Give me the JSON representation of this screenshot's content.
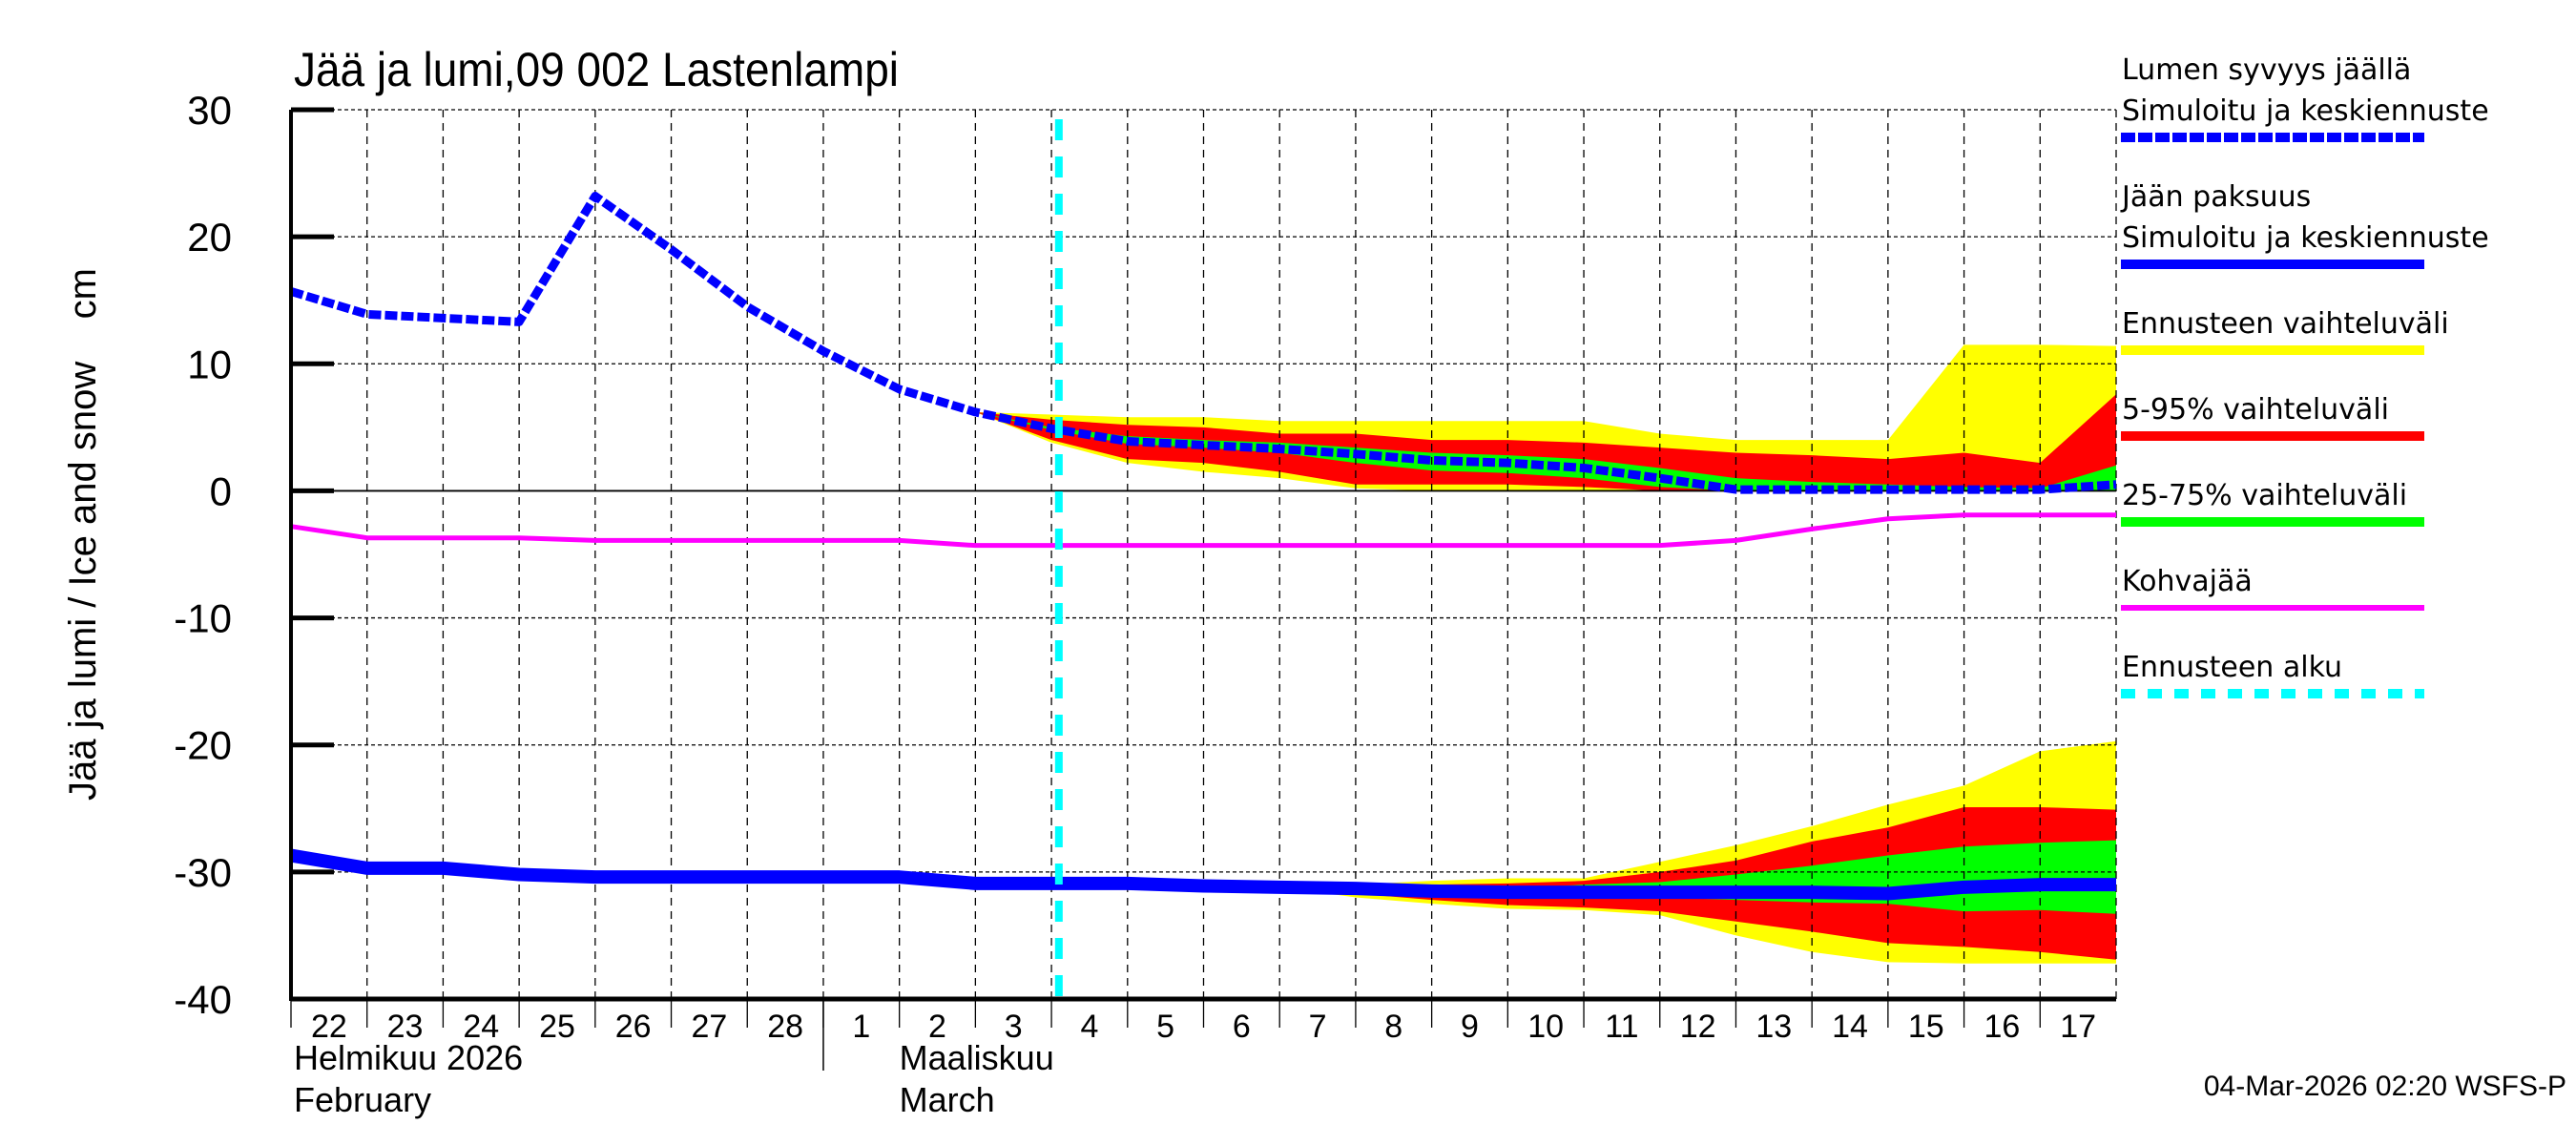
{
  "chart_data": {
    "type": "area",
    "title": "Jää ja lumi,09 002 Lastenlampi",
    "ylabel": "Jää ja lumi / Ice and snow    cm",
    "ylim": [
      -40,
      30
    ],
    "yticks": [
      "30",
      "20",
      "10",
      "0",
      "-10",
      "-20",
      "-30",
      "-40"
    ],
    "xlim": [
      "2026-02-22",
      "2026-03-18"
    ],
    "xtick_labels": [
      "22",
      "23",
      "24",
      "25",
      "26",
      "27",
      "28",
      "1",
      "2",
      "3",
      "4",
      "5",
      "6",
      "7",
      "8",
      "9",
      "10",
      "11",
      "12",
      "13",
      "14",
      "15",
      "16",
      "17"
    ],
    "month_labels": [
      {
        "fi": "Helmikuu  2026",
        "en": "February"
      },
      {
        "fi": "Maaliskuu",
        "en": "March"
      }
    ],
    "grid": true,
    "legend_placement": "right",
    "forecast_start": "2026-03-04T02:20",
    "series": [
      {
        "name": "Lumen syvyys jäällä Simuloitu ja keskiennuste",
        "style": "dashed",
        "color": "#0000ff",
        "x": [
          "2026-02-22",
          "2026-02-23",
          "2026-02-24",
          "2026-02-25",
          "2026-02-26",
          "2026-02-27",
          "2026-02-28",
          "2026-03-01",
          "2026-03-02",
          "2026-03-03",
          "2026-03-04",
          "2026-03-05",
          "2026-03-06",
          "2026-03-07",
          "2026-03-08",
          "2026-03-09",
          "2026-03-10",
          "2026-03-11",
          "2026-03-12",
          "2026-03-13",
          "2026-03-14",
          "2026-03-15",
          "2026-03-16",
          "2026-03-17",
          "2026-03-18"
        ],
        "y": [
          15.7,
          13.9,
          13.6,
          13.3,
          23.2,
          19.0,
          14.5,
          11.0,
          8.0,
          6.2,
          4.9,
          3.9,
          3.6,
          3.3,
          2.9,
          2.4,
          2.2,
          1.8,
          1.0,
          0.1,
          0.1,
          0.1,
          0.1,
          0.1,
          0.5
        ]
      },
      {
        "name": "Jään paksuus Simuloitu ja keskiennuste",
        "style": "solid",
        "color": "#0000ff",
        "x": [
          "2026-02-22",
          "2026-02-23",
          "2026-02-24",
          "2026-02-25",
          "2026-02-26",
          "2026-02-27",
          "2026-02-28",
          "2026-03-01",
          "2026-03-02",
          "2026-03-03",
          "2026-03-04",
          "2026-03-05",
          "2026-03-06",
          "2026-03-07",
          "2026-03-08",
          "2026-03-09",
          "2026-03-10",
          "2026-03-11",
          "2026-03-12",
          "2026-03-13",
          "2026-03-14",
          "2026-03-15",
          "2026-03-16",
          "2026-03-17",
          "2026-03-18"
        ],
        "y": [
          -28.7,
          -29.7,
          -29.7,
          -30.2,
          -30.4,
          -30.4,
          -30.4,
          -30.4,
          -30.4,
          -30.9,
          -30.9,
          -30.9,
          -31.1,
          -31.2,
          -31.3,
          -31.5,
          -31.6,
          -31.6,
          -31.6,
          -31.6,
          -31.6,
          -31.7,
          -31.2,
          -31.0,
          -31.0
        ]
      },
      {
        "name": "Kohvajää",
        "style": "solid",
        "color": "#ff00ff",
        "x": [
          "2026-02-22",
          "2026-02-23",
          "2026-02-24",
          "2026-02-25",
          "2026-02-26",
          "2026-02-27",
          "2026-02-28",
          "2026-03-01",
          "2026-03-02",
          "2026-03-03",
          "2026-03-04",
          "2026-03-05",
          "2026-03-06",
          "2026-03-07",
          "2026-03-08",
          "2026-03-09",
          "2026-03-10",
          "2026-03-11",
          "2026-03-12",
          "2026-03-13",
          "2026-03-14",
          "2026-03-15",
          "2026-03-16",
          "2026-03-17",
          "2026-03-18"
        ],
        "y": [
          -2.8,
          -3.7,
          -3.7,
          -3.7,
          -3.9,
          -3.9,
          -3.9,
          -3.9,
          -3.9,
          -4.3,
          -4.3,
          -4.3,
          -4.3,
          -4.3,
          -4.3,
          -4.3,
          -4.3,
          -4.3,
          -4.3,
          -3.9,
          -3.0,
          -2.2,
          -1.9,
          -1.9,
          -1.9
        ]
      }
    ],
    "bands": [
      {
        "name": "Ennusteen vaihteluväli",
        "color": "#ffff00",
        "target": "snow",
        "x": [
          "2026-03-03",
          "2026-03-04",
          "2026-03-05",
          "2026-03-06",
          "2026-03-07",
          "2026-03-08",
          "2026-03-09",
          "2026-03-10",
          "2026-03-11",
          "2026-03-12",
          "2026-03-13",
          "2026-03-14",
          "2026-03-15",
          "2026-03-16",
          "2026-03-17",
          "2026-03-18"
        ],
        "upper": [
          6.2,
          6.0,
          5.8,
          5.8,
          5.5,
          5.5,
          5.5,
          5.5,
          5.5,
          4.5,
          4.0,
          4.0,
          4.0,
          11.5,
          11.5,
          11.4
        ],
        "lower": [
          6.2,
          3.8,
          2.2,
          1.5,
          1.0,
          0.2,
          0,
          0,
          0,
          0,
          0,
          0,
          0,
          0,
          0,
          0
        ]
      },
      {
        "name": "5-95% vaihteluväli",
        "color": "#ff0000",
        "target": "snow",
        "x": [
          "2026-03-03",
          "2026-03-04",
          "2026-03-05",
          "2026-03-06",
          "2026-03-07",
          "2026-03-08",
          "2026-03-09",
          "2026-03-10",
          "2026-03-11",
          "2026-03-12",
          "2026-03-13",
          "2026-03-14",
          "2026-03-15",
          "2026-03-16",
          "2026-03-17",
          "2026-03-18"
        ],
        "upper": [
          6.2,
          5.6,
          5.2,
          5.0,
          4.5,
          4.5,
          4.0,
          4.0,
          3.8,
          3.4,
          3.0,
          2.8,
          2.5,
          3.0,
          2.2,
          7.6
        ],
        "lower": [
          6.2,
          4.0,
          2.5,
          2.2,
          1.5,
          0.5,
          0.5,
          0.5,
          0.3,
          0,
          0,
          0,
          0,
          0,
          0,
          0
        ]
      },
      {
        "name": "25-75% vaihteluväli",
        "color": "#00ff00",
        "target": "snow",
        "x": [
          "2026-03-03",
          "2026-03-04",
          "2026-03-05",
          "2026-03-06",
          "2026-03-07",
          "2026-03-08",
          "2026-03-09",
          "2026-03-10",
          "2026-03-11",
          "2026-03-12",
          "2026-03-13",
          "2026-03-14",
          "2026-03-15",
          "2026-03-16",
          "2026-03-17",
          "2026-03-18"
        ],
        "upper": [
          6.2,
          5.0,
          4.3,
          4.0,
          3.8,
          3.4,
          3.0,
          2.8,
          2.5,
          1.8,
          1.0,
          0.7,
          0.5,
          0.3,
          0.2,
          2.0
        ],
        "lower": [
          6.2,
          4.8,
          3.7,
          3.4,
          3.0,
          2.2,
          1.6,
          1.4,
          1.0,
          0.3,
          0,
          0,
          0,
          0,
          0,
          0
        ]
      },
      {
        "name": "Ennusteen vaihteluväli",
        "color": "#ffff00",
        "target": "ice",
        "x": [
          "2026-03-07",
          "2026-03-08",
          "2026-03-09",
          "2026-03-10",
          "2026-03-11",
          "2026-03-12",
          "2026-03-13",
          "2026-03-14",
          "2026-03-15",
          "2026-03-16",
          "2026-03-17",
          "2026-03-18"
        ],
        "upper": [
          -31.0,
          -31.0,
          -30.7,
          -30.5,
          -30.5,
          -29.2,
          -27.9,
          -26.4,
          -24.7,
          -23.2,
          -20.5,
          -19.7
        ],
        "lower": [
          -31.2,
          -32.0,
          -32.5,
          -32.9,
          -33.0,
          -33.4,
          -35.0,
          -36.3,
          -37.1,
          -37.2,
          -37.2,
          -37.2
        ]
      },
      {
        "name": "5-95% vaihteluväli",
        "color": "#ff0000",
        "target": "ice",
        "x": [
          "2026-03-07",
          "2026-03-08",
          "2026-03-09",
          "2026-03-10",
          "2026-03-11",
          "2026-03-12",
          "2026-03-13",
          "2026-03-14",
          "2026-03-15",
          "2026-03-16",
          "2026-03-17",
          "2026-03-18"
        ],
        "upper": [
          -31.1,
          -31.1,
          -31.0,
          -30.9,
          -30.7,
          -30.0,
          -29.1,
          -27.6,
          -26.5,
          -24.9,
          -24.9,
          -25.1
        ],
        "lower": [
          -31.2,
          -31.7,
          -32.2,
          -32.6,
          -32.8,
          -33.1,
          -33.9,
          -34.7,
          -35.6,
          -35.9,
          -36.3,
          -36.9
        ]
      },
      {
        "name": "25-75% vaihteluväli",
        "color": "#00ff00",
        "target": "ice",
        "x": [
          "2026-03-07",
          "2026-03-08",
          "2026-03-09",
          "2026-03-10",
          "2026-03-11",
          "2026-03-12",
          "2026-03-13",
          "2026-03-14",
          "2026-03-15",
          "2026-03-16",
          "2026-03-17",
          "2026-03-18"
        ],
        "upper": [
          -31.2,
          -31.3,
          -31.4,
          -31.3,
          -31.0,
          -30.8,
          -30.2,
          -29.5,
          -28.7,
          -28.0,
          -27.7,
          -27.5
        ],
        "lower": [
          -31.2,
          -31.4,
          -31.6,
          -31.7,
          -31.8,
          -32.0,
          -32.2,
          -32.4,
          -32.5,
          -33.1,
          -33.0,
          -33.3
        ]
      }
    ]
  },
  "legend": [
    {
      "lines": [
        "Lumen syvyys jäällä",
        "Simuloitu ja keskiennuste"
      ],
      "color": "#0000ff",
      "style": "dashed"
    },
    {
      "lines": [
        "Jään paksuus",
        "Simuloitu ja keskiennuste"
      ],
      "color": "#0000ff",
      "style": "solid"
    },
    {
      "lines": [
        "Ennusteen vaihteluväli"
      ],
      "color": "#ffff00",
      "style": "solid"
    },
    {
      "lines": [
        "5-95% vaihteluväli"
      ],
      "color": "#ff0000",
      "style": "solid"
    },
    {
      "lines": [
        "25-75% vaihteluväli"
      ],
      "color": "#00ff00",
      "style": "solid"
    },
    {
      "lines": [
        "Kohvajää"
      ],
      "color": "#ff00ff",
      "style": "thin"
    },
    {
      "lines": [
        "Ennusteen alku"
      ],
      "color": "#00ffff",
      "style": "dashed-wide"
    }
  ],
  "footer": "04-Mar-2026 02:20 WSFS-P"
}
